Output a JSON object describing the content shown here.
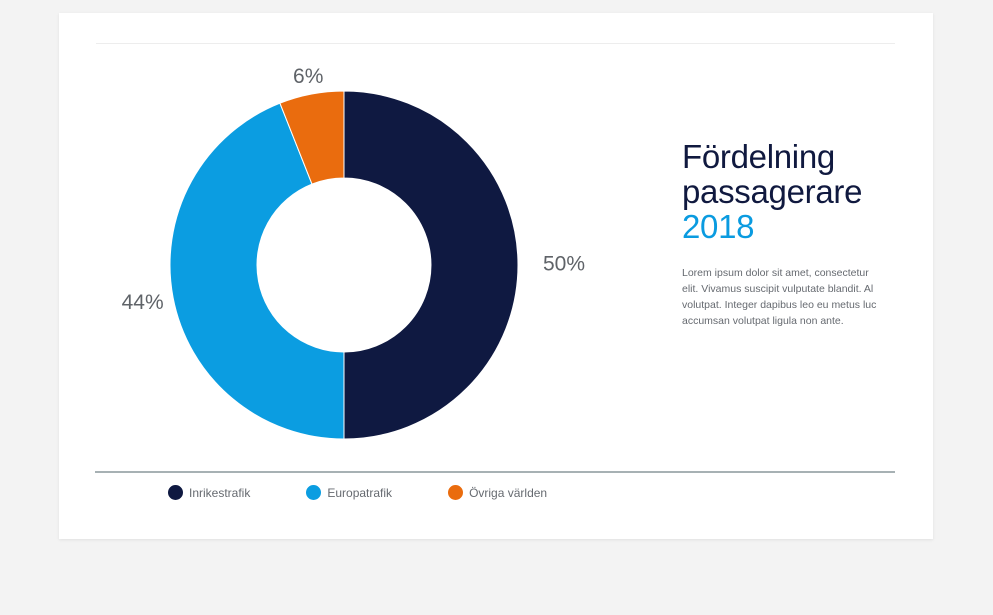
{
  "chart_data": {
    "type": "pie",
    "donut": true,
    "title": "Fördelning passagerare 2018",
    "slices": [
      {
        "name": "Inrikestrafik",
        "value": 50,
        "label": "50%",
        "color": "#0f1941"
      },
      {
        "name": "Europatrafik",
        "value": 44,
        "label": "44%",
        "color": "#0b9de1"
      },
      {
        "name": "Övriga världen",
        "value": 6,
        "label": "6%",
        "color": "#ea6c0e"
      }
    ],
    "legend_position": "bottom"
  },
  "heading": {
    "line1": "Fördelning",
    "line2": "passagerare",
    "year": "2018"
  },
  "body_text": [
    "Lorem ipsum dolor sit amet, consectetur",
    "elit. Vivamus suscipit vulputate blandit. Al",
    "volutpat. Integer dapibus leo eu metus luc",
    "accumsan volutpat ligula non ante."
  ]
}
